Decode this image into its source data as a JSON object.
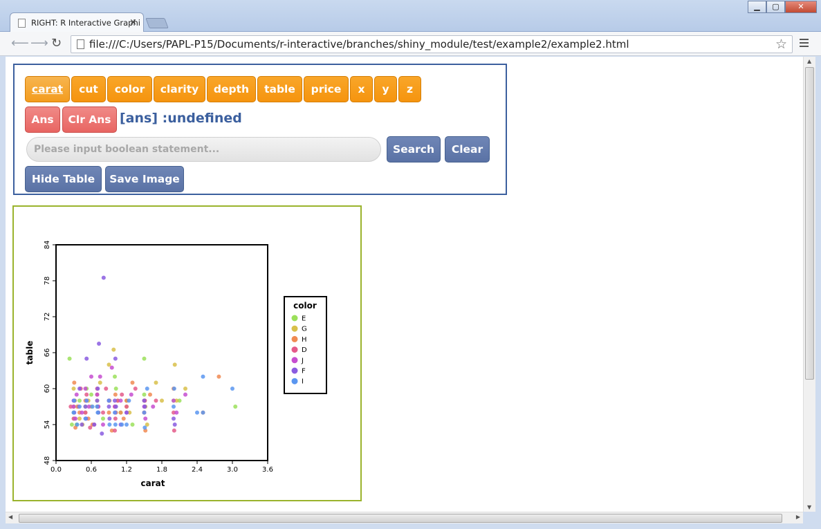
{
  "browser": {
    "tab_title": "RIGHT: R Interactive Graphi",
    "tab_close": "×",
    "url": "file:///C:/Users/PAPL-P15/Documents/r-interactive/branches/shiny_module/test/example2/example2.html",
    "window_buttons": [
      "minimize-icon",
      "maximize-icon",
      "close-icon"
    ],
    "nav_icons": [
      "back-arrow-icon",
      "forward-arrow-icon",
      "reload-icon",
      "bookmark-star-icon",
      "menu-icon"
    ]
  },
  "panel": {
    "variable_buttons": [
      "carat",
      "cut",
      "color",
      "clarity",
      "depth",
      "table",
      "price",
      "x",
      "y",
      "z"
    ],
    "active_variable": "carat",
    "ans_button": "Ans",
    "clear_ans_button": "Clr Ans",
    "ans_status": "[ans] :undefined",
    "search_placeholder": "Please input boolean statement...",
    "search_button": "Search",
    "clear_button": "Clear",
    "hide_table_button": "Hide Table",
    "save_image_button": "Save Image",
    "colors": {
      "variable": "#f5940e",
      "ans": "#e86562",
      "action": "#5a72a5",
      "border": "#3b5f9e"
    }
  },
  "chart_data": {
    "type": "scatter",
    "xlabel": "carat",
    "ylabel": "table",
    "xlim": [
      0,
      3.6
    ],
    "ylim": [
      48,
      84
    ],
    "xticks": [
      "0.0",
      "0.6",
      "1.2",
      "1.8",
      "2.4",
      "3.0",
      "3.6"
    ],
    "yticks": [
      "48",
      "54",
      "60",
      "66",
      "72",
      "78",
      "84"
    ],
    "grid": false,
    "legend": {
      "title": "color",
      "placement": "right"
    },
    "series": [
      {
        "name": "E",
        "color": "#9be05a",
        "points": [
          [
            0.23,
            65
          ],
          [
            0.3,
            56
          ],
          [
            0.31,
            55
          ],
          [
            0.4,
            58
          ],
          [
            0.5,
            57
          ],
          [
            0.52,
            60
          ],
          [
            0.7,
            57
          ],
          [
            0.72,
            56
          ],
          [
            0.9,
            58
          ],
          [
            1.0,
            62
          ],
          [
            1.01,
            57
          ],
          [
            1.1,
            56
          ],
          [
            1.2,
            58
          ],
          [
            1.5,
            65
          ],
          [
            1.5,
            59
          ],
          [
            1.51,
            57
          ],
          [
            2.0,
            58
          ],
          [
            2.1,
            58
          ],
          [
            3.05,
            57
          ],
          [
            0.35,
            54
          ],
          [
            0.8,
            55
          ],
          [
            1.3,
            54
          ],
          [
            0.6,
            59
          ],
          [
            1.02,
            60
          ],
          [
            0.27,
            54
          ]
        ]
      },
      {
        "name": "G",
        "color": "#d8c04a",
        "points": [
          [
            0.3,
            60
          ],
          [
            0.32,
            58
          ],
          [
            0.36,
            57
          ],
          [
            0.5,
            56
          ],
          [
            0.55,
            58
          ],
          [
            0.6,
            57
          ],
          [
            0.7,
            58
          ],
          [
            0.75,
            61
          ],
          [
            0.9,
            64
          ],
          [
            0.98,
            66.5
          ],
          [
            1.0,
            57
          ],
          [
            1.02,
            56
          ],
          [
            1.05,
            58
          ],
          [
            1.2,
            57
          ],
          [
            1.5,
            58
          ],
          [
            1.52,
            57
          ],
          [
            1.7,
            61
          ],
          [
            1.8,
            58
          ],
          [
            2.02,
            64
          ],
          [
            2.05,
            58
          ],
          [
            0.4,
            55
          ],
          [
            0.45,
            54
          ],
          [
            1.25,
            56
          ],
          [
            1.55,
            54
          ],
          [
            2.2,
            60
          ]
        ]
      },
      {
        "name": "H",
        "color": "#f08a52",
        "points": [
          [
            0.3,
            57
          ],
          [
            0.31,
            61
          ],
          [
            0.4,
            56
          ],
          [
            0.5,
            58
          ],
          [
            0.55,
            55
          ],
          [
            0.7,
            59
          ],
          [
            0.72,
            57
          ],
          [
            0.9,
            56
          ],
          [
            0.91,
            58
          ],
          [
            1.0,
            57
          ],
          [
            1.01,
            59
          ],
          [
            1.1,
            56
          ],
          [
            1.2,
            58
          ],
          [
            1.3,
            61
          ],
          [
            1.5,
            56
          ],
          [
            1.51,
            58
          ],
          [
            1.52,
            53
          ],
          [
            2.0,
            60
          ],
          [
            2.5,
            56
          ],
          [
            2.77,
            62
          ],
          [
            0.33,
            53.5
          ],
          [
            0.62,
            54
          ],
          [
            1.15,
            55
          ],
          [
            1.6,
            59
          ],
          [
            0.95,
            53
          ]
        ]
      },
      {
        "name": "D",
        "color": "#e45a8a",
        "points": [
          [
            0.3,
            55
          ],
          [
            0.31,
            58
          ],
          [
            0.38,
            57
          ],
          [
            0.5,
            56
          ],
          [
            0.52,
            59
          ],
          [
            0.7,
            60
          ],
          [
            0.71,
            57
          ],
          [
            0.8,
            56
          ],
          [
            0.9,
            58
          ],
          [
            1.0,
            53
          ],
          [
            1.01,
            55
          ],
          [
            1.05,
            58
          ],
          [
            1.2,
            57
          ],
          [
            1.5,
            56
          ],
          [
            1.51,
            58
          ],
          [
            2.0,
            56
          ],
          [
            2.01,
            53
          ],
          [
            0.58,
            53.5
          ],
          [
            1.35,
            60
          ],
          [
            0.25,
            57
          ],
          [
            0.65,
            54
          ],
          [
            1.7,
            58
          ],
          [
            0.85,
            60
          ],
          [
            1.12,
            59
          ],
          [
            0.42,
            60
          ]
        ]
      },
      {
        "name": "J",
        "color": "#c64ed0",
        "points": [
          [
            0.3,
            57
          ],
          [
            0.35,
            59
          ],
          [
            0.5,
            60
          ],
          [
            0.52,
            58
          ],
          [
            0.7,
            59
          ],
          [
            0.72,
            57
          ],
          [
            0.75,
            62
          ],
          [
            0.9,
            58
          ],
          [
            1.0,
            57
          ],
          [
            1.01,
            56
          ],
          [
            1.2,
            56
          ],
          [
            1.5,
            57
          ],
          [
            1.52,
            55
          ],
          [
            2.0,
            58
          ],
          [
            2.2,
            59
          ],
          [
            0.6,
            62
          ],
          [
            0.95,
            63.5
          ],
          [
            0.33,
            55
          ],
          [
            0.8,
            54
          ],
          [
            1.1,
            58
          ],
          [
            0.44,
            56
          ],
          [
            1.65,
            57
          ],
          [
            1.28,
            59
          ],
          [
            0.56,
            57
          ],
          [
            2.05,
            56
          ]
        ]
      },
      {
        "name": "F",
        "color": "#8a5ce0",
        "points": [
          [
            0.3,
            58
          ],
          [
            0.31,
            56
          ],
          [
            0.4,
            60
          ],
          [
            0.5,
            57
          ],
          [
            0.51,
            55
          ],
          [
            0.7,
            58
          ],
          [
            0.71,
            60
          ],
          [
            0.72,
            56
          ],
          [
            0.81,
            78.5
          ],
          [
            0.73,
            67.5
          ],
          [
            0.78,
            52.5
          ],
          [
            0.9,
            57
          ],
          [
            0.91,
            55
          ],
          [
            1.0,
            58
          ],
          [
            1.01,
            65
          ],
          [
            1.02,
            57
          ],
          [
            1.2,
            56
          ],
          [
            1.5,
            58
          ],
          [
            1.51,
            57
          ],
          [
            2.0,
            55
          ],
          [
            2.02,
            54
          ],
          [
            0.52,
            65
          ],
          [
            0.44,
            54
          ],
          [
            0.65,
            54
          ],
          [
            1.1,
            54
          ]
        ]
      },
      {
        "name": "I",
        "color": "#5a96f0",
        "points": [
          [
            0.3,
            56
          ],
          [
            0.31,
            58
          ],
          [
            0.4,
            57
          ],
          [
            0.5,
            55
          ],
          [
            0.52,
            58
          ],
          [
            0.7,
            57
          ],
          [
            0.71,
            56
          ],
          [
            0.9,
            58
          ],
          [
            0.91,
            54
          ],
          [
            1.0,
            56
          ],
          [
            1.01,
            54
          ],
          [
            1.2,
            54
          ],
          [
            1.5,
            56
          ],
          [
            1.51,
            53.5
          ],
          [
            2.0,
            57
          ],
          [
            2.01,
            60
          ],
          [
            2.4,
            56
          ],
          [
            2.5,
            62
          ],
          [
            2.5,
            56
          ],
          [
            3.0,
            60
          ],
          [
            0.36,
            54
          ],
          [
            0.62,
            57
          ],
          [
            1.12,
            54
          ],
          [
            1.24,
            58
          ],
          [
            1.55,
            60
          ]
        ]
      }
    ]
  }
}
